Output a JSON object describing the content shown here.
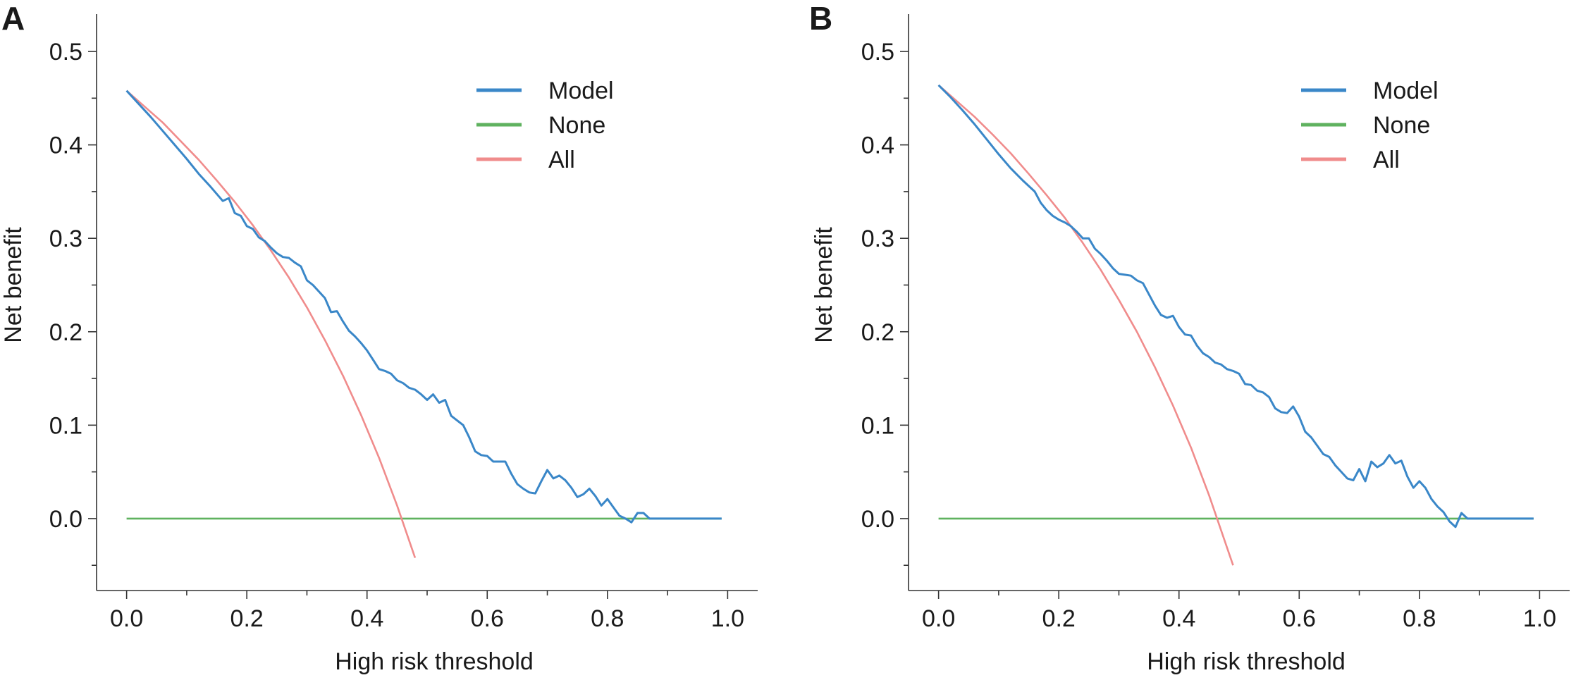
{
  "colors": {
    "model": "#3a87c8",
    "none": "#5fb25f",
    "all": "#f08c8c",
    "axis": "#333333"
  },
  "chart_data": [
    {
      "type": "line",
      "panel_label": "A",
      "title": "",
      "xlabel": "High risk threshold",
      "ylabel": "Net benefit",
      "xlim": [
        -0.05,
        1.05
      ],
      "ylim": [
        -0.077,
        0.54
      ],
      "xticks": [
        0.0,
        0.2,
        0.4,
        0.6,
        0.8,
        1.0
      ],
      "xtick_labels": [
        "0.0",
        "0.2",
        "0.4",
        "0.6",
        "0.8",
        "1.0"
      ],
      "yticks": [
        0.0,
        0.1,
        0.2,
        0.3,
        0.4,
        0.5
      ],
      "ytick_labels": [
        "0.0",
        "0.1",
        "0.2",
        "0.3",
        "0.4",
        "0.5"
      ],
      "grid": false,
      "legend": "upper-right",
      "series": [
        {
          "name": "Model",
          "color": "#3a87c8",
          "x": [
            0.0,
            0.02,
            0.04,
            0.06,
            0.08,
            0.1,
            0.12,
            0.14,
            0.16,
            0.17,
            0.18,
            0.19,
            0.2,
            0.21,
            0.22,
            0.23,
            0.24,
            0.25,
            0.26,
            0.27,
            0.28,
            0.29,
            0.3,
            0.31,
            0.32,
            0.33,
            0.34,
            0.35,
            0.36,
            0.37,
            0.38,
            0.39,
            0.4,
            0.41,
            0.42,
            0.43,
            0.44,
            0.45,
            0.46,
            0.47,
            0.48,
            0.49,
            0.5,
            0.51,
            0.52,
            0.53,
            0.54,
            0.55,
            0.56,
            0.57,
            0.58,
            0.59,
            0.6,
            0.61,
            0.62,
            0.63,
            0.64,
            0.65,
            0.66,
            0.67,
            0.68,
            0.69,
            0.7,
            0.71,
            0.72,
            0.73,
            0.74,
            0.75,
            0.76,
            0.77,
            0.78,
            0.79,
            0.8,
            0.81,
            0.82,
            0.83,
            0.84,
            0.85,
            0.86,
            0.87,
            0.88,
            0.9,
            0.95,
            0.99
          ],
          "y": [
            0.458,
            0.444,
            0.43,
            0.415,
            0.4,
            0.385,
            0.369,
            0.355,
            0.34,
            0.343,
            0.327,
            0.324,
            0.313,
            0.31,
            0.301,
            0.297,
            0.29,
            0.284,
            0.28,
            0.279,
            0.274,
            0.27,
            0.255,
            0.25,
            0.243,
            0.236,
            0.221,
            0.222,
            0.211,
            0.201,
            0.195,
            0.188,
            0.18,
            0.17,
            0.16,
            0.158,
            0.155,
            0.148,
            0.145,
            0.14,
            0.138,
            0.133,
            0.127,
            0.133,
            0.124,
            0.127,
            0.11,
            0.105,
            0.1,
            0.087,
            0.072,
            0.068,
            0.067,
            0.061,
            0.061,
            0.061,
            0.048,
            0.037,
            0.032,
            0.028,
            0.027,
            0.04,
            0.052,
            0.043,
            0.046,
            0.041,
            0.033,
            0.023,
            0.026,
            0.032,
            0.024,
            0.014,
            0.021,
            0.012,
            0.003,
            0.0,
            -0.004,
            0.006,
            0.006,
            0.0,
            0.0,
            0.0,
            0.0,
            0.0
          ]
        },
        {
          "name": "None",
          "color": "#5fb25f",
          "x": [
            0.0,
            0.99
          ],
          "y": [
            0.0,
            0.0
          ]
        },
        {
          "name": "All",
          "color": "#f08c8c",
          "prevalence": 0.458,
          "x": [
            0.0,
            0.03,
            0.06,
            0.09,
            0.12,
            0.15,
            0.18,
            0.21,
            0.24,
            0.27,
            0.3,
            0.33,
            0.36,
            0.39,
            0.42,
            0.45,
            0.48
          ],
          "y": [
            0.458,
            0.441,
            0.424,
            0.404,
            0.384,
            0.362,
            0.339,
            0.314,
            0.287,
            0.258,
            0.226,
            0.191,
            0.153,
            0.111,
            0.065,
            0.014,
            -0.042
          ]
        }
      ]
    },
    {
      "type": "line",
      "panel_label": "B",
      "title": "",
      "xlabel": "High risk threshold",
      "ylabel": "Net benefit",
      "xlim": [
        -0.05,
        1.05
      ],
      "ylim": [
        -0.077,
        0.54
      ],
      "xticks": [
        0.0,
        0.2,
        0.4,
        0.6,
        0.8,
        1.0
      ],
      "xtick_labels": [
        "0.0",
        "0.2",
        "0.4",
        "0.6",
        "0.8",
        "1.0"
      ],
      "yticks": [
        0.0,
        0.1,
        0.2,
        0.3,
        0.4,
        0.5
      ],
      "ytick_labels": [
        "0.0",
        "0.1",
        "0.2",
        "0.3",
        "0.4",
        "0.5"
      ],
      "grid": false,
      "legend": "upper-right",
      "series": [
        {
          "name": "Model",
          "color": "#3a87c8",
          "x": [
            0.0,
            0.02,
            0.04,
            0.06,
            0.08,
            0.1,
            0.12,
            0.14,
            0.16,
            0.17,
            0.18,
            0.19,
            0.2,
            0.21,
            0.22,
            0.23,
            0.24,
            0.25,
            0.26,
            0.27,
            0.28,
            0.29,
            0.3,
            0.31,
            0.32,
            0.33,
            0.34,
            0.35,
            0.36,
            0.37,
            0.38,
            0.39,
            0.4,
            0.41,
            0.42,
            0.43,
            0.44,
            0.45,
            0.46,
            0.47,
            0.48,
            0.49,
            0.5,
            0.51,
            0.52,
            0.53,
            0.54,
            0.55,
            0.56,
            0.57,
            0.58,
            0.59,
            0.6,
            0.61,
            0.62,
            0.63,
            0.64,
            0.65,
            0.66,
            0.67,
            0.68,
            0.69,
            0.7,
            0.71,
            0.72,
            0.73,
            0.74,
            0.75,
            0.76,
            0.77,
            0.78,
            0.79,
            0.8,
            0.81,
            0.82,
            0.83,
            0.84,
            0.85,
            0.86,
            0.87,
            0.88,
            0.89,
            0.9,
            0.95,
            0.99
          ],
          "y": [
            0.464,
            0.451,
            0.437,
            0.422,
            0.406,
            0.39,
            0.375,
            0.362,
            0.35,
            0.338,
            0.33,
            0.324,
            0.32,
            0.317,
            0.313,
            0.307,
            0.3,
            0.3,
            0.289,
            0.283,
            0.276,
            0.268,
            0.262,
            0.261,
            0.26,
            0.255,
            0.252,
            0.24,
            0.228,
            0.218,
            0.215,
            0.217,
            0.205,
            0.197,
            0.196,
            0.185,
            0.177,
            0.173,
            0.167,
            0.165,
            0.16,
            0.158,
            0.155,
            0.144,
            0.143,
            0.137,
            0.135,
            0.13,
            0.118,
            0.114,
            0.113,
            0.12,
            0.109,
            0.093,
            0.087,
            0.078,
            0.069,
            0.066,
            0.057,
            0.05,
            0.043,
            0.041,
            0.053,
            0.04,
            0.061,
            0.055,
            0.059,
            0.068,
            0.059,
            0.062,
            0.045,
            0.033,
            0.04,
            0.033,
            0.021,
            0.013,
            0.007,
            -0.003,
            -0.009,
            0.006,
            0.0,
            0.0,
            0.0,
            0.0,
            0.0
          ]
        },
        {
          "name": "None",
          "color": "#5fb25f",
          "x": [
            0.0,
            0.99
          ],
          "y": [
            0.0,
            0.0
          ]
        },
        {
          "name": "All",
          "color": "#f08c8c",
          "prevalence": 0.464,
          "x": [
            0.0,
            0.03,
            0.06,
            0.09,
            0.12,
            0.15,
            0.18,
            0.21,
            0.24,
            0.27,
            0.3,
            0.33,
            0.36,
            0.39,
            0.42,
            0.45,
            0.49
          ],
          "y": [
            0.464,
            0.447,
            0.43,
            0.411,
            0.391,
            0.369,
            0.346,
            0.322,
            0.295,
            0.266,
            0.234,
            0.2,
            0.162,
            0.121,
            0.076,
            0.025,
            -0.05
          ]
        }
      ]
    }
  ]
}
